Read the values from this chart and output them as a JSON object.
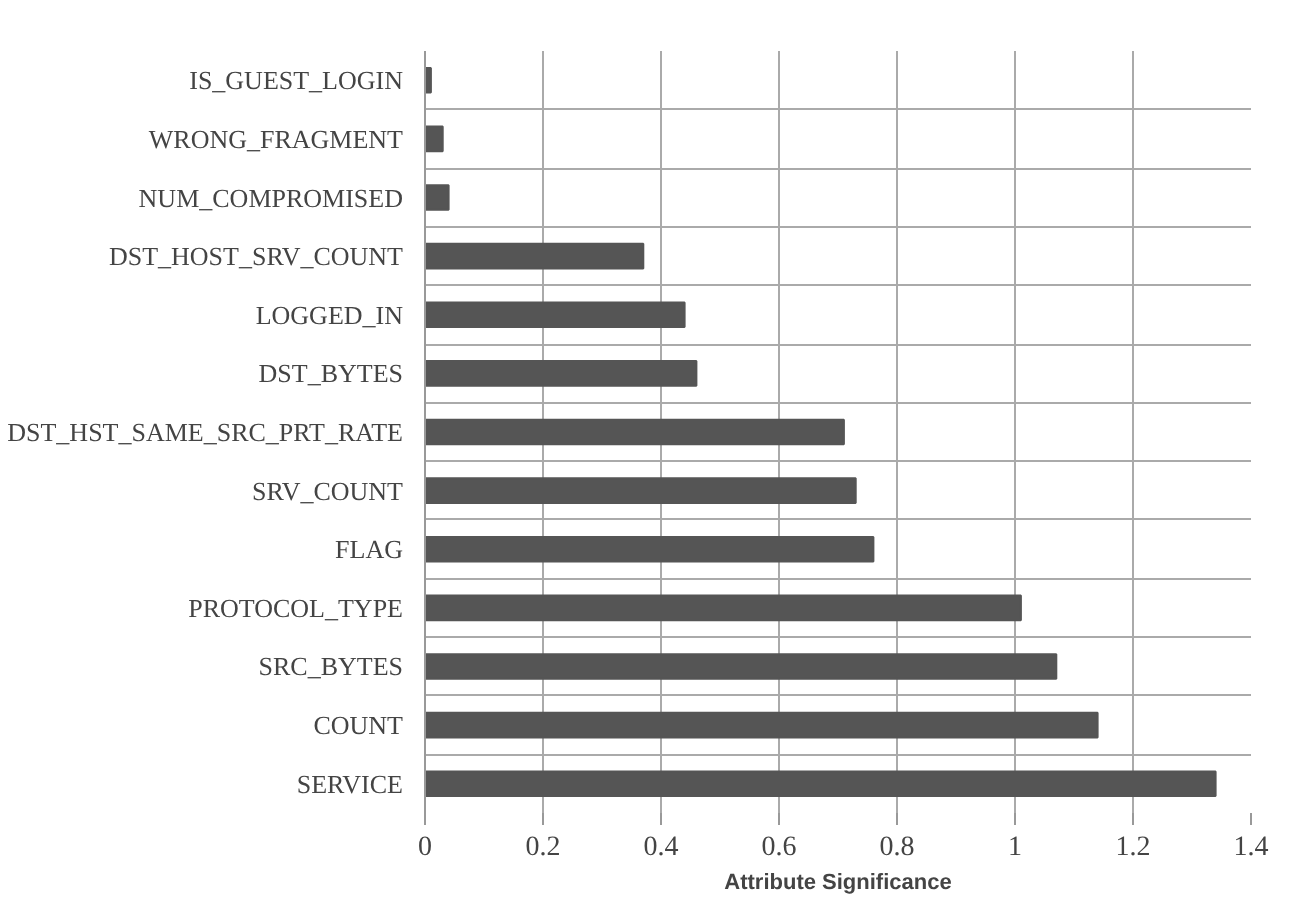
{
  "chart_data": {
    "type": "bar",
    "orientation": "horizontal",
    "xlabel": "Attribute Significance",
    "categories": [
      "IS_GUEST_LOGIN",
      "WRONG_FRAGMENT",
      "NUM_COMPROMISED",
      "DST_HOST_SRV_COUNT",
      "LOGGED_IN",
      "DST_BYTES",
      "DST_HST_SAME_SRC_PRT_RATE",
      "SRV_COUNT",
      "FLAG",
      "PROTOCOL_TYPE",
      "SRC_BYTES",
      "COUNT",
      "SERVICE"
    ],
    "values": [
      0.01,
      0.03,
      0.04,
      0.37,
      0.44,
      0.46,
      0.71,
      0.73,
      0.76,
      1.01,
      1.07,
      1.14,
      1.34
    ],
    "color": "#555555",
    "xlim": [
      0,
      1.4
    ],
    "xticks": [
      0,
      0.2,
      0.4,
      0.6,
      0.8,
      1,
      1.2,
      1.4
    ],
    "grid": true
  }
}
